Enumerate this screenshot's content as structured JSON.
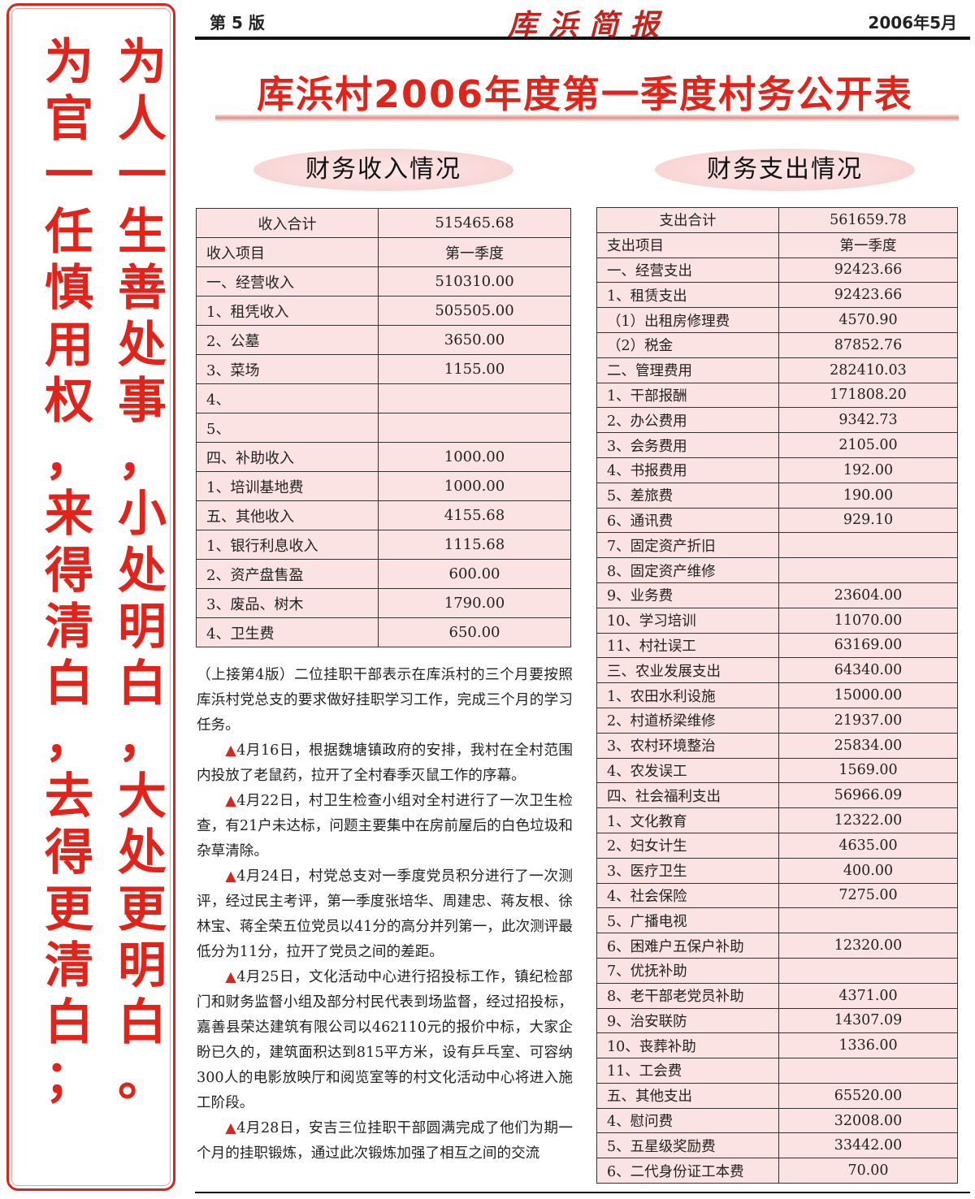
{
  "banner": {
    "left_column": "为官一任慎用权，来得清白，去得更清白；",
    "right_column": "为人一生善处事，小处明白，大处更明白。"
  },
  "header": {
    "edition": "第 5 版",
    "masthead": "库浜简报",
    "date": "2006年5月"
  },
  "title": "库浜村2006年度第一季度村务公开表",
  "income": {
    "heading": "财务收入情况",
    "total_label": "收入合计",
    "total": "515465.68",
    "col_item": "收入项目",
    "col_period": "第一季度",
    "rows": [
      [
        "一、经营收入",
        "510310.00"
      ],
      [
        "1、租凭收入",
        "505505.00"
      ],
      [
        "2、公墓",
        "3650.00"
      ],
      [
        "3、菜场",
        "1155.00"
      ],
      [
        "4、",
        ""
      ],
      [
        "5、",
        ""
      ],
      [
        "四、补助收入",
        "1000.00"
      ],
      [
        "1、培训基地费",
        "1000.00"
      ],
      [
        "五、其他收入",
        "4155.68"
      ],
      [
        "1、银行利息收入",
        "1115.68"
      ],
      [
        "2、资产盘售盈",
        "600.00"
      ],
      [
        "3、废品、树木",
        "1790.00"
      ],
      [
        "4、卫生费",
        "650.00"
      ]
    ]
  },
  "expense": {
    "heading": "财务支出情况",
    "total_label": "支出合计",
    "total": "561659.78",
    "col_item": "支出项目",
    "col_period": "第一季度",
    "rows": [
      [
        "一、经营支出",
        "92423.66"
      ],
      [
        "1、租赁支出",
        "92423.66"
      ],
      [
        "（1）出租房修理费",
        "4570.90"
      ],
      [
        "（2）税金",
        "87852.76"
      ],
      [
        "二、管理费用",
        "282410.03"
      ],
      [
        "1、干部报酬",
        "171808.20"
      ],
      [
        "2、办公费用",
        "9342.73"
      ],
      [
        "3、会务费用",
        "2105.00"
      ],
      [
        "4、书报费用",
        "192.00"
      ],
      [
        "5、差旅费",
        "190.00"
      ],
      [
        "6、通讯费",
        "929.10"
      ],
      [
        "7、固定资产折旧",
        ""
      ],
      [
        "8、固定资产维修",
        ""
      ],
      [
        "9、业务费",
        "23604.00"
      ],
      [
        "10、学习培训",
        "11070.00"
      ],
      [
        "11、村社误工",
        "63169.00"
      ],
      [
        "三、农业发展支出",
        "64340.00"
      ],
      [
        "1、农田水利设施",
        "15000.00"
      ],
      [
        "2、村道桥梁维修",
        "21937.00"
      ],
      [
        "3、农村环境整治",
        "25834.00"
      ],
      [
        "4、农发误工",
        "1569.00"
      ],
      [
        "四、社会福利支出",
        "56966.09"
      ],
      [
        "1、文化教育",
        "12322.00"
      ],
      [
        "2、妇女计生",
        "4635.00"
      ],
      [
        "3、医疗卫生",
        "400.00"
      ],
      [
        "4、社会保险",
        "7275.00"
      ],
      [
        "5、广播电视",
        ""
      ],
      [
        "6、困难户五保户补助",
        "12320.00"
      ],
      [
        "7、优抚补助",
        ""
      ],
      [
        "8、老干部老党员补助",
        "4371.00"
      ],
      [
        "9、治安联防",
        "14307.09"
      ],
      [
        "10、丧葬补助",
        "1336.00"
      ],
      [
        "11、工会费",
        ""
      ],
      [
        "五、其他支出",
        "65520.00"
      ],
      [
        "4、慰问费",
        "32008.00"
      ],
      [
        "5、五星级奖励费",
        "33442.00"
      ],
      [
        "6、二代身份证工本费",
        "70.00"
      ]
    ]
  },
  "article": {
    "paragraphs": [
      {
        "marker": "",
        "text": "（上接第4版）二位挂职干部表示在库浜村的三个月要按照库浜村党总支的要求做好挂职学习工作，完成三个月的学习任务。"
      },
      {
        "marker": "▲",
        "text": "4月16日，根据魏塘镇政府的安排，我村在全村范围内投放了老鼠药，拉开了全村春季灭鼠工作的序幕。"
      },
      {
        "marker": "▲",
        "text": "4月22日，村卫生检查小组对全村进行了一次卫生检查，有21户未达标，问题主要集中在房前屋后的白色垃圾和杂草清除。"
      },
      {
        "marker": "▲",
        "text": "4月24日，村党总支对一季度党员积分进行了一次测评，经过民主考评，第一季度张培华、周建忠、蒋友根、徐林宝、蒋全荣五位党员以41分的高分并列第一，此次测评最低分为11分，拉开了党员之间的差距。"
      },
      {
        "marker": "▲",
        "text": "4月25日，文化活动中心进行招投标工作，镇纪检部门和财务监督小组及部分村民代表到场监督，经过招投标，嘉善县荣达建筑有限公司以462110元的报价中标，大家企盼已久的，建筑面积达到815平方米，设有乒乓室、可容纳300人的电影放映厅和阅览室等的村文化活动中心将进入施工阶段。"
      },
      {
        "marker": "▲",
        "text": "4月28日，安吉三位挂职干部圆满完成了他们为期一个月的挂职锻炼，通过此次锻炼加强了相互之间的交流"
      }
    ]
  },
  "colors": {
    "accent_red": "#e2231a",
    "table_fill": "#fce3e3"
  }
}
